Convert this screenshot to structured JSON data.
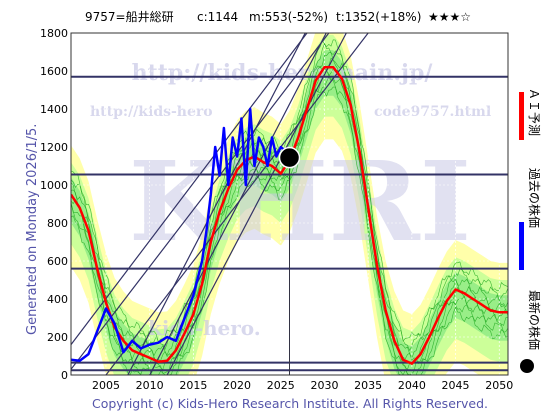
{
  "header": {
    "code_name": "9757=船井総研",
    "current": "c:1144",
    "min_stat": "m:553(-52%)",
    "target_stat": "t:1352(+18%)",
    "stars": "★★★☆"
  },
  "side_label": "Generated on Monday 2026/1/5.",
  "footer": "Copyright (c) Kids-Hero Research Institute. All Rights Reserved.",
  "watermarks": {
    "url_main": "http://kids-hero.main.jp/",
    "url_sub_left": "http://kids-hero",
    "url_sub_right": "code9757.html",
    "big_text": "KHRI",
    "bottom_text": "kids-hero."
  },
  "legend": [
    {
      "label": "ＡＩ予測",
      "color": "#ff0000",
      "kind": "line"
    },
    {
      "label": "過去の株価",
      "color": "#0000ff",
      "kind": "line"
    },
    {
      "label": "最新の株価",
      "color": "#000000",
      "kind": "dot"
    }
  ],
  "colors": {
    "ai_prediction": "#ff0000",
    "past_price": "#0000ff",
    "latest_dot": "#000000",
    "band_outer": "#ffffaa",
    "band_mid": "#ccff99",
    "band_inner": "#99ee88",
    "green_lines": "#22aa22",
    "channel_lines": "#333366",
    "level_lines": "#333366"
  },
  "chart_data": {
    "type": "line",
    "x_range": [
      2001,
      2051
    ],
    "y_range": [
      0,
      1800
    ],
    "x_ticks": [
      2005,
      2010,
      2015,
      2020,
      2025,
      2030,
      2035,
      2040,
      2045,
      2050
    ],
    "y_ticks": [
      0,
      200,
      400,
      600,
      800,
      1000,
      1200,
      1400,
      1600,
      1800
    ],
    "horizontal_levels": [
      1570,
      1055,
      560,
      65,
      25
    ],
    "latest": {
      "x": 2026.0,
      "y": 1144
    },
    "channel_lines": [
      {
        "x1": 2007.5,
        "y1": 0,
        "x2": 2027.8,
        "y2": 1800
      },
      {
        "x1": 2010.0,
        "y1": 0,
        "x2": 2030.2,
        "y2": 1800
      },
      {
        "x1": 2012.0,
        "y1": 0,
        "x2": 2032.5,
        "y2": 1800
      },
      {
        "x1": 2001.0,
        "y1": 160,
        "x2": 2028.0,
        "y2": 1800
      },
      {
        "x1": 2001.0,
        "y1": 30,
        "x2": 2030.5,
        "y2": 1800
      },
      {
        "x1": 2005.0,
        "y1": 0,
        "x2": 2035.0,
        "y2": 1800
      }
    ],
    "series": [
      {
        "name": "ＡＩ予測",
        "points": [
          [
            2001,
            950
          ],
          [
            2002,
            880
          ],
          [
            2003,
            760
          ],
          [
            2004,
            560
          ],
          [
            2005,
            380
          ],
          [
            2006,
            250
          ],
          [
            2007,
            180
          ],
          [
            2008,
            130
          ],
          [
            2009,
            110
          ],
          [
            2010,
            90
          ],
          [
            2011,
            70
          ],
          [
            2012,
            75
          ],
          [
            2013,
            130
          ],
          [
            2014,
            220
          ],
          [
            2015,
            320
          ],
          [
            2016,
            480
          ],
          [
            2017,
            700
          ],
          [
            2018,
            860
          ],
          [
            2019,
            980
          ],
          [
            2020,
            1080
          ],
          [
            2021,
            1130
          ],
          [
            2022,
            1150
          ],
          [
            2023,
            1120
          ],
          [
            2024,
            1100
          ],
          [
            2025,
            1060
          ],
          [
            2026,
            1130
          ],
          [
            2027,
            1250
          ],
          [
            2028,
            1400
          ],
          [
            2029,
            1550
          ],
          [
            2030,
            1620
          ],
          [
            2031,
            1620
          ],
          [
            2032,
            1560
          ],
          [
            2033,
            1420
          ],
          [
            2034,
            1180
          ],
          [
            2035,
            880
          ],
          [
            2036,
            580
          ],
          [
            2037,
            340
          ],
          [
            2038,
            180
          ],
          [
            2039,
            80
          ],
          [
            2040,
            60
          ],
          [
            2041,
            110
          ],
          [
            2042,
            200
          ],
          [
            2043,
            300
          ],
          [
            2044,
            390
          ],
          [
            2045,
            450
          ],
          [
            2046,
            430
          ],
          [
            2047,
            400
          ],
          [
            2048,
            370
          ],
          [
            2049,
            340
          ],
          [
            2050,
            330
          ],
          [
            2051,
            330
          ]
        ]
      },
      {
        "name": "過去の株価",
        "points": [
          [
            2001,
            80
          ],
          [
            2002,
            75
          ],
          [
            2003,
            110
          ],
          [
            2004,
            230
          ],
          [
            2005,
            350
          ],
          [
            2006,
            270
          ],
          [
            2007,
            120
          ],
          [
            2008,
            180
          ],
          [
            2009,
            140
          ],
          [
            2010,
            160
          ],
          [
            2011,
            170
          ],
          [
            2012,
            200
          ],
          [
            2013,
            180
          ],
          [
            2014,
            300
          ],
          [
            2015,
            420
          ],
          [
            2016,
            600
          ],
          [
            2016.5,
            760
          ],
          [
            2017,
            950
          ],
          [
            2017.5,
            1200
          ],
          [
            2018,
            1050
          ],
          [
            2018.5,
            1300
          ],
          [
            2019,
            1000
          ],
          [
            2019.5,
            1250
          ],
          [
            2020,
            1150
          ],
          [
            2020.5,
            1350
          ],
          [
            2021,
            1000
          ],
          [
            2021.5,
            1400
          ],
          [
            2022,
            1100
          ],
          [
            2022.5,
            1250
          ],
          [
            2023,
            1200
          ],
          [
            2023.5,
            1100
          ],
          [
            2024,
            1250
          ],
          [
            2024.5,
            1150
          ],
          [
            2025,
            1200
          ],
          [
            2025.5,
            1180
          ],
          [
            2026,
            1144
          ]
        ]
      }
    ]
  }
}
